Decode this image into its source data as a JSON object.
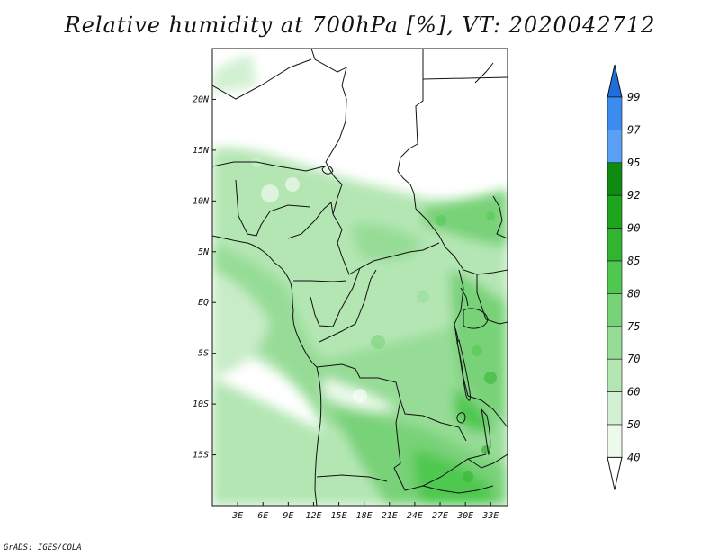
{
  "title": "Relative humidity at 700hPa [%], VT: 2020042712",
  "footer": "GrADS: IGES/COLA",
  "map": {
    "lon_range": [
      0,
      35
    ],
    "lat_range": [
      -20,
      25
    ],
    "lon_ticks": [
      "3E",
      "6E",
      "9E",
      "12E",
      "15E",
      "18E",
      "21E",
      "24E",
      "27E",
      "30E",
      "33E"
    ],
    "lat_ticks": [
      "20N",
      "15N",
      "10N",
      "5N",
      "EQ",
      "5S",
      "10S",
      "15S"
    ],
    "colorbar": {
      "levels": [
        "99",
        "97",
        "95",
        "92",
        "90",
        "85",
        "80",
        "75",
        "70",
        "60",
        "50",
        "40"
      ],
      "colors": [
        "#1e6edc",
        "#3c8cf0",
        "#5aa0f5",
        "#0f8c0f",
        "#1ea51e",
        "#32b432",
        "#50c850",
        "#78d278",
        "#96dc96",
        "#b4e6b4",
        "#d2f0d2",
        "#ebfaeb"
      ]
    }
  }
}
